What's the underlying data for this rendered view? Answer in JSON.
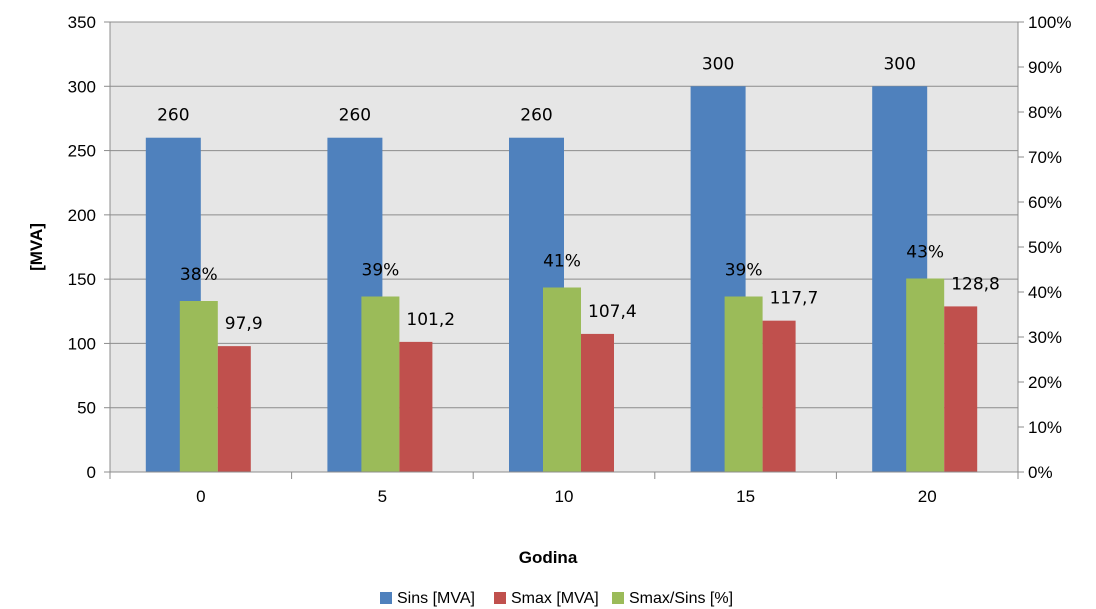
{
  "chart_data": {
    "type": "bar",
    "title": "",
    "xlabel": "Godina",
    "ylabel": "[MVA]",
    "categories": [
      "0",
      "5",
      "10",
      "15",
      "20"
    ],
    "ylim": [
      0,
      350
    ],
    "yticks": [
      "0",
      "50",
      "100",
      "150",
      "200",
      "250",
      "300",
      "350"
    ],
    "y2lim": [
      0,
      100
    ],
    "y2ticks": [
      "0%",
      "10%",
      "20%",
      "30%",
      "40%",
      "50%",
      "60%",
      "70%",
      "80%",
      "90%",
      "100%"
    ],
    "grid": true,
    "legend_position": "bottom",
    "series": [
      {
        "name": "Sins [MVA]",
        "axis": "left",
        "color": "#4F81BD",
        "values": [
          260,
          260,
          260,
          300,
          300
        ],
        "labels": [
          "260",
          "260",
          "260",
          "300",
          "300"
        ]
      },
      {
        "name": "Smax [MVA]",
        "axis": "left",
        "color": "#C0504D",
        "values": [
          97.9,
          101.2,
          107.4,
          117.7,
          128.8
        ],
        "labels": [
          "97,9",
          "101,2",
          "107,4",
          "117,7",
          "128,8"
        ]
      },
      {
        "name": "Smax/Sins [%]",
        "axis": "right",
        "color": "#9BBB59",
        "values": [
          38,
          39,
          41,
          39,
          43
        ],
        "labels": [
          "38%",
          "39%",
          "41%",
          "39%",
          "43%"
        ]
      }
    ]
  }
}
